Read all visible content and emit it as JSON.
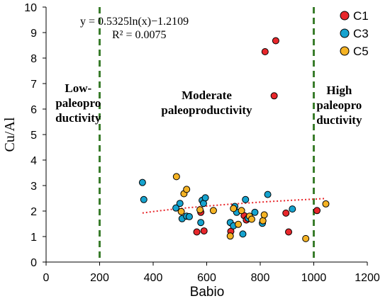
{
  "chart_data": {
    "type": "scatter",
    "xlabel": "Babio",
    "ylabel": "Cu/Al",
    "xlim": [
      0,
      1200
    ],
    "ylim": [
      0,
      10
    ],
    "x_ticks": [
      0,
      200,
      400,
      600,
      800,
      1000,
      1200
    ],
    "y_ticks": [
      0,
      1,
      2,
      3,
      4,
      5,
      6,
      7,
      8,
      9,
      10
    ],
    "x_tick_labels": [
      "0",
      "200",
      "400",
      "600",
      "800",
      "1000",
      "1200"
    ],
    "y_tick_labels": [
      "0",
      "1",
      "2",
      "3",
      "4",
      "5",
      "6",
      "7",
      "8",
      "9",
      "10"
    ],
    "grid": false,
    "legend_position": "top-right",
    "series": [
      {
        "name": "C1",
        "color": "#e8272b",
        "points": [
          {
            "x": 818,
            "y": 8.25
          },
          {
            "x": 858,
            "y": 8.68
          },
          {
            "x": 852,
            "y": 6.52
          },
          {
            "x": 896,
            "y": 1.92
          },
          {
            "x": 906,
            "y": 1.18
          },
          {
            "x": 1012,
            "y": 2.02
          },
          {
            "x": 590,
            "y": 1.22
          },
          {
            "x": 563,
            "y": 1.18
          },
          {
            "x": 578,
            "y": 1.95
          },
          {
            "x": 690,
            "y": 1.2
          },
          {
            "x": 740,
            "y": 1.82
          },
          {
            "x": 748,
            "y": 1.65
          }
        ]
      },
      {
        "name": "C3",
        "color": "#16a3cf",
        "points": [
          {
            "x": 360,
            "y": 3.12
          },
          {
            "x": 365,
            "y": 2.45
          },
          {
            "x": 485,
            "y": 2.12
          },
          {
            "x": 500,
            "y": 2.3
          },
          {
            "x": 508,
            "y": 1.7
          },
          {
            "x": 525,
            "y": 1.8
          },
          {
            "x": 535,
            "y": 1.78
          },
          {
            "x": 578,
            "y": 1.55
          },
          {
            "x": 583,
            "y": 2.42
          },
          {
            "x": 588,
            "y": 2.3
          },
          {
            "x": 595,
            "y": 2.52
          },
          {
            "x": 688,
            "y": 1.55
          },
          {
            "x": 700,
            "y": 1.42
          },
          {
            "x": 705,
            "y": 2.18
          },
          {
            "x": 712,
            "y": 1.95
          },
          {
            "x": 735,
            "y": 1.1
          },
          {
            "x": 745,
            "y": 2.45
          },
          {
            "x": 755,
            "y": 1.72
          },
          {
            "x": 780,
            "y": 1.95
          },
          {
            "x": 808,
            "y": 1.52
          },
          {
            "x": 828,
            "y": 2.65
          },
          {
            "x": 920,
            "y": 2.08
          }
        ]
      },
      {
        "name": "C5",
        "color": "#f5b324",
        "points": [
          {
            "x": 487,
            "y": 3.35
          },
          {
            "x": 505,
            "y": 1.98
          },
          {
            "x": 515,
            "y": 2.68
          },
          {
            "x": 525,
            "y": 2.85
          },
          {
            "x": 575,
            "y": 2.05
          },
          {
            "x": 625,
            "y": 2.02
          },
          {
            "x": 688,
            "y": 1.02
          },
          {
            "x": 700,
            "y": 2.1
          },
          {
            "x": 718,
            "y": 1.48
          },
          {
            "x": 730,
            "y": 2.02
          },
          {
            "x": 760,
            "y": 1.8
          },
          {
            "x": 768,
            "y": 1.68
          },
          {
            "x": 810,
            "y": 1.62
          },
          {
            "x": 815,
            "y": 1.85
          },
          {
            "x": 970,
            "y": 0.92
          },
          {
            "x": 1045,
            "y": 2.28
          }
        ]
      }
    ],
    "trendline": {
      "type": "log",
      "a": 0.5325,
      "b": -1.2109,
      "x_range": [
        360,
        1045
      ],
      "color": "#e8272b",
      "style": "dotted"
    },
    "equation_text": "y = 0.5325ln(x)−1.2109",
    "r2_text": "R² = 0.0075",
    "thresholds": [
      {
        "x": 200,
        "color": "#3a7d2c",
        "style": "dashed"
      },
      {
        "x": 1000,
        "color": "#3a7d2c",
        "style": "dashed"
      }
    ],
    "regions": [
      {
        "lines": [
          "Low-",
          "paleopro",
          "ductivity"
        ]
      },
      {
        "lines": [
          "Moderate",
          "paleoproductivity"
        ]
      },
      {
        "lines": [
          "High",
          "paleopro",
          "ductivity"
        ]
      }
    ]
  }
}
